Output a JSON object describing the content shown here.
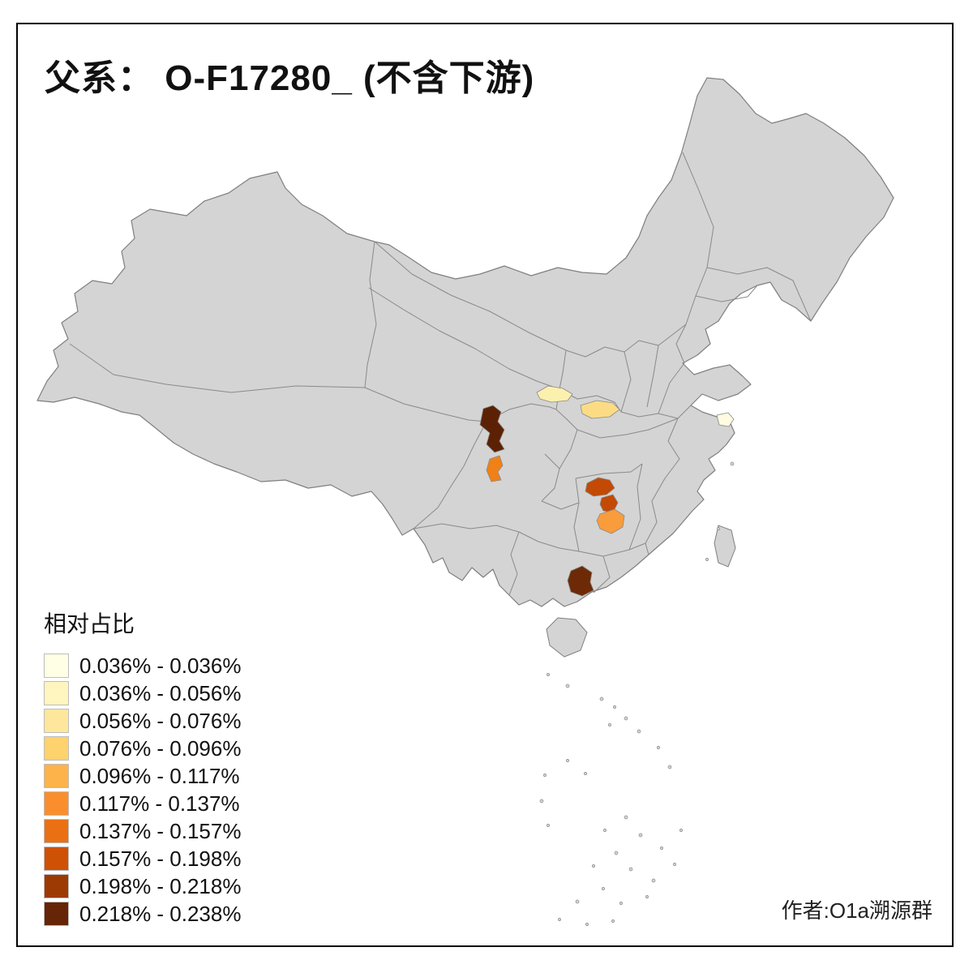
{
  "page": {
    "title": "父系： O-F17280_ (不含下游)",
    "attribution": "作者:O1a溯源群",
    "background": "#FFFFFF",
    "frame_color": "#000000"
  },
  "legend": {
    "title": "相对占比",
    "classes": [
      {
        "label": "0.036% - 0.036%",
        "color": "#FFFFE5"
      },
      {
        "label": "0.036% - 0.056%",
        "color": "#FFF5BE"
      },
      {
        "label": "0.056% - 0.076%",
        "color": "#FEE79C"
      },
      {
        "label": "0.076% - 0.096%",
        "color": "#FED26C"
      },
      {
        "label": "0.096% - 0.117%",
        "color": "#FEB34A"
      },
      {
        "label": "0.117% - 0.137%",
        "color": "#FB8E2C"
      },
      {
        "label": "0.137% - 0.157%",
        "color": "#EB7014"
      },
      {
        "label": "0.157% - 0.198%",
        "color": "#CE5106"
      },
      {
        "label": "0.198% - 0.218%",
        "color": "#9D3A04"
      },
      {
        "label": "0.218% - 0.238%",
        "color": "#662506"
      }
    ]
  },
  "map": {
    "base_fill": "#D4D4D4",
    "border_color": "#8A8A8A",
    "outline_color": "#7F7F7F",
    "regions": [
      {
        "id": "nw-sichuan",
        "name": "northwest-sichuan",
        "value": "0.218% - 0.238%",
        "color": "#5C2104"
      },
      {
        "id": "c-sichuan",
        "name": "central-sichuan",
        "value": "0.117% - 0.137%",
        "color": "#F08018"
      },
      {
        "id": "se-gansu",
        "name": "southeast-gansu",
        "value": "0.036% - 0.056%",
        "color": "#FCF0AE"
      },
      {
        "id": "sw-henan",
        "name": "southwest-henan",
        "value": "0.056% - 0.076%",
        "color": "#FBDC85"
      },
      {
        "id": "shanghai-vicinity",
        "name": "shanghai-vicinity",
        "value": "0.036% - 0.036%",
        "color": "#FEFBE0"
      },
      {
        "id": "nw-hunan-a",
        "name": "northwest-hunan-a",
        "value": "0.157% - 0.198%",
        "color": "#C24A05"
      },
      {
        "id": "nw-hunan-b",
        "name": "northwest-hunan-b",
        "value": "0.157% - 0.198%",
        "color": "#C24A05"
      },
      {
        "id": "c-hunan",
        "name": "central-hunan",
        "value": "0.096% - 0.117%",
        "color": "#F99C3C"
      },
      {
        "id": "s-guangxi",
        "name": "south-guangxi",
        "value": "0.198% - 0.218%",
        "color": "#6E2A06"
      }
    ]
  },
  "chart_data": {
    "type": "heatmap",
    "title": "父系： O-F17280_ (不含下游)",
    "legend_title": "相对占比",
    "legend_position": "bottom-left",
    "bins": [
      "0.036% - 0.036%",
      "0.036% - 0.056%",
      "0.056% - 0.076%",
      "0.076% - 0.096%",
      "0.096% - 0.117%",
      "0.117% - 0.137%",
      "0.137% - 0.157%",
      "0.157% - 0.198%",
      "0.198% - 0.218%",
      "0.218% - 0.238%"
    ],
    "bin_colors": [
      "#FFFFE5",
      "#FFF5BE",
      "#FEE79C",
      "#FED26C",
      "#FEB34A",
      "#FB8E2C",
      "#EB7014",
      "#CE5106",
      "#9D3A04",
      "#662506"
    ],
    "regions": [
      {
        "location": "northwest-sichuan",
        "bin": "0.218% - 0.238%"
      },
      {
        "location": "central-sichuan",
        "bin": "0.117% - 0.137%"
      },
      {
        "location": "southeast-gansu",
        "bin": "0.036% - 0.056%"
      },
      {
        "location": "southwest-henan",
        "bin": "0.056% - 0.076%"
      },
      {
        "location": "shanghai-vicinity",
        "bin": "0.036% - 0.036%"
      },
      {
        "location": "northwest-hunan-a",
        "bin": "0.157% - 0.198%"
      },
      {
        "location": "northwest-hunan-b",
        "bin": "0.157% - 0.198%"
      },
      {
        "location": "central-hunan",
        "bin": "0.096% - 0.117%"
      },
      {
        "location": "south-guangxi",
        "bin": "0.198% - 0.218%"
      }
    ]
  }
}
